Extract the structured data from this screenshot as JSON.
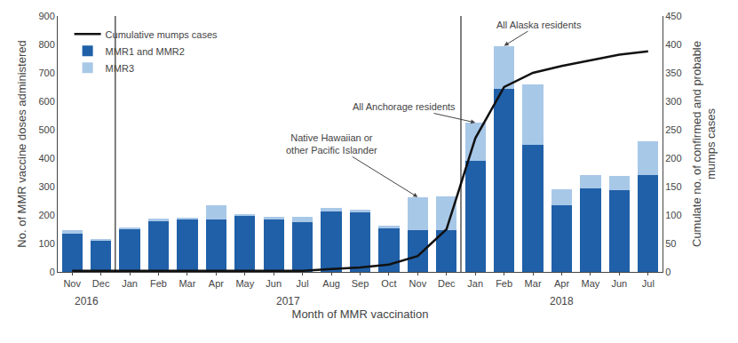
{
  "chart_data": {
    "type": "bar",
    "stacked": true,
    "categories": [
      "Nov",
      "Dec",
      "Jan",
      "Feb",
      "Mar",
      "Apr",
      "May",
      "Jun",
      "Jul",
      "Aug",
      "Sep",
      "Oct",
      "Nov",
      "Dec",
      "Jan",
      "Feb",
      "Mar",
      "Apr",
      "May",
      "Jun",
      "Jul"
    ],
    "groups": [
      "2016",
      "2016",
      "2017",
      "2017",
      "2017",
      "2017",
      "2017",
      "2017",
      "2017",
      "2017",
      "2017",
      "2017",
      "2017",
      "2017",
      "2018",
      "2018",
      "2018",
      "2018",
      "2018",
      "2018",
      "2018"
    ],
    "xlabel": "Month of MMR vaccination",
    "ylabel": "No. of MMR vaccine doses administered",
    "y2label": "Cumulate no. of confirmed and probable\nmumps cases",
    "ylim": [
      0,
      900
    ],
    "yticks": [
      0,
      100,
      200,
      300,
      400,
      500,
      600,
      700,
      800,
      900
    ],
    "y2lim": [
      0,
      450
    ],
    "y2ticks": [
      0,
      50,
      100,
      150,
      200,
      250,
      300,
      350,
      400,
      450
    ],
    "grid": false,
    "legend": "upper left",
    "series": [
      {
        "name": "MMR1 and MMR2",
        "type": "bar",
        "color": "#2060a8",
        "values": [
          135,
          110,
          150,
          178,
          183,
          185,
          198,
          183,
          175,
          213,
          208,
          153,
          148,
          148,
          390,
          643,
          448,
          233,
          293,
          288,
          342
        ]
      },
      {
        "name": "MMR3",
        "type": "bar",
        "color": "#a8c8e8",
        "values": [
          13,
          5,
          5,
          8,
          8,
          50,
          6,
          10,
          18,
          12,
          10,
          8,
          115,
          118,
          135,
          152,
          212,
          58,
          48,
          50,
          118
        ]
      },
      {
        "name": "Cumulative mumps cases",
        "type": "line",
        "axis": "y2",
        "color": "#111111",
        "values": [
          2,
          2,
          2,
          2,
          2,
          2,
          2,
          2,
          2,
          5,
          8,
          13,
          28,
          75,
          235,
          325,
          350,
          362,
          372,
          382,
          388
        ]
      }
    ],
    "annotations": [
      {
        "text": "Native Hawaiian or\nother Pacific Islander",
        "index": 12
      },
      {
        "text": "All Anchorage residents",
        "index": 14
      },
      {
        "text": "All Alaska residents",
        "index": 15
      }
    ]
  }
}
